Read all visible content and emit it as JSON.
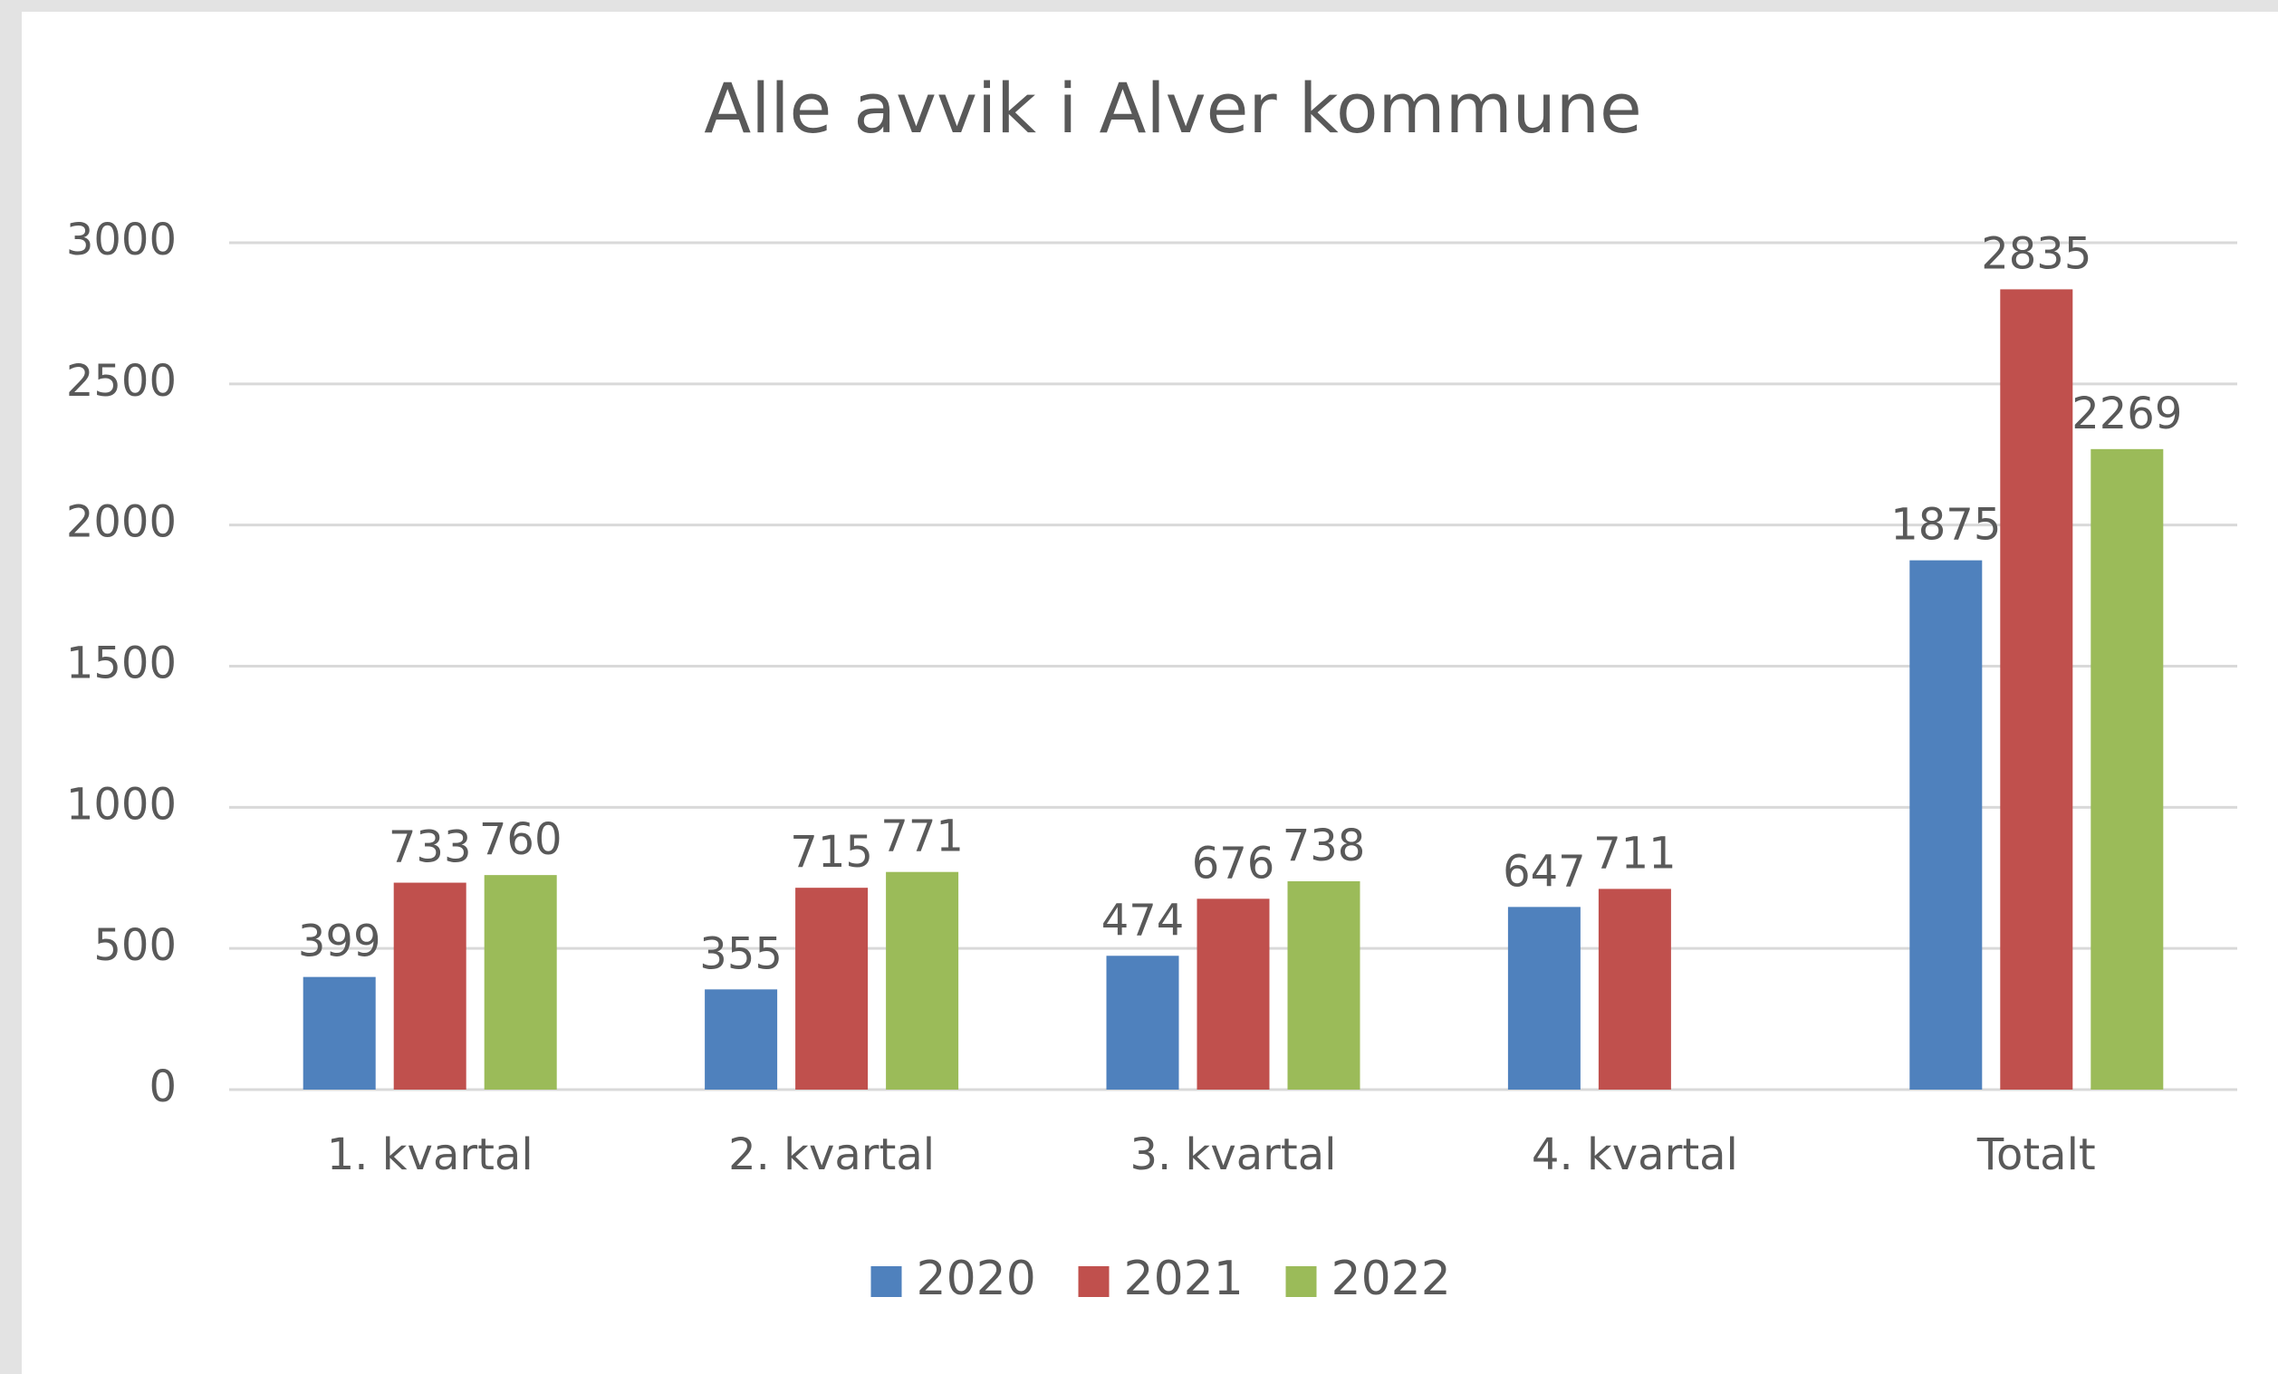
{
  "chart_data": {
    "type": "bar",
    "title": "Alle avvik i Alver kommune",
    "categories": [
      "1. kvartal",
      "2. kvartal",
      "3. kvartal",
      "4. kvartal",
      "Totalt"
    ],
    "series": [
      {
        "name": "2020",
        "color": "#4f81bd",
        "values": [
          399,
          355,
          474,
          647,
          1875
        ]
      },
      {
        "name": "2021",
        "color": "#c0504d",
        "values": [
          733,
          715,
          676,
          711,
          2835
        ]
      },
      {
        "name": "2022",
        "color": "#9bbb59",
        "values": [
          760,
          771,
          738,
          null,
          2269
        ]
      }
    ],
    "ylim": [
      0,
      3000
    ],
    "yticks": [
      0,
      500,
      1000,
      1500,
      2000,
      2500,
      3000
    ],
    "grid": true,
    "legend": "bottom"
  }
}
